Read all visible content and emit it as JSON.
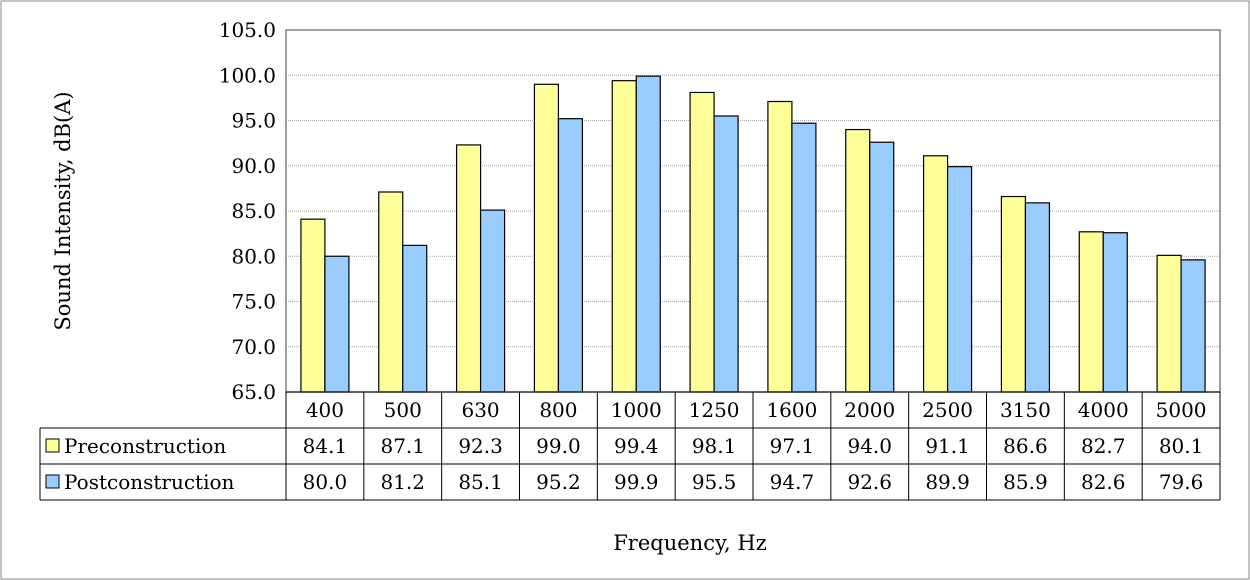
{
  "chart_data": {
    "type": "bar",
    "title": "",
    "xlabel": "Frequency, Hz",
    "ylabel": "Sound Intensity, dB(A)",
    "ylim": [
      65,
      105
    ],
    "ytick_step": 5,
    "yticks": [
      "65.0",
      "70.0",
      "75.0",
      "80.0",
      "85.0",
      "90.0",
      "95.0",
      "100.0",
      "105.0"
    ],
    "grid": true,
    "legend": "data-table",
    "categories": [
      "400",
      "500",
      "630",
      "800",
      "1000",
      "1250",
      "1600",
      "2000",
      "2500",
      "3150",
      "4000",
      "5000"
    ],
    "series": [
      {
        "name": "Preconstruction",
        "color": "#ffff99",
        "values": [
          84.1,
          87.1,
          92.3,
          99.0,
          99.4,
          98.1,
          97.1,
          94.0,
          91.1,
          86.6,
          82.7,
          80.1
        ],
        "labels": [
          "84.1",
          "87.1",
          "92.3",
          "99.0",
          "99.4",
          "98.1",
          "97.1",
          "94.0",
          "91.1",
          "86.6",
          "82.7",
          "80.1"
        ]
      },
      {
        "name": "Postconstruction",
        "color": "#99ccff",
        "values": [
          80.0,
          81.2,
          85.1,
          95.2,
          99.9,
          95.5,
          94.7,
          92.6,
          89.9,
          85.9,
          82.6,
          79.6
        ],
        "labels": [
          "80.0",
          "81.2",
          "85.1",
          "95.2",
          "99.9",
          "95.5",
          "94.7",
          "92.6",
          "89.9",
          "85.9",
          "82.6",
          "79.6"
        ]
      }
    ]
  }
}
